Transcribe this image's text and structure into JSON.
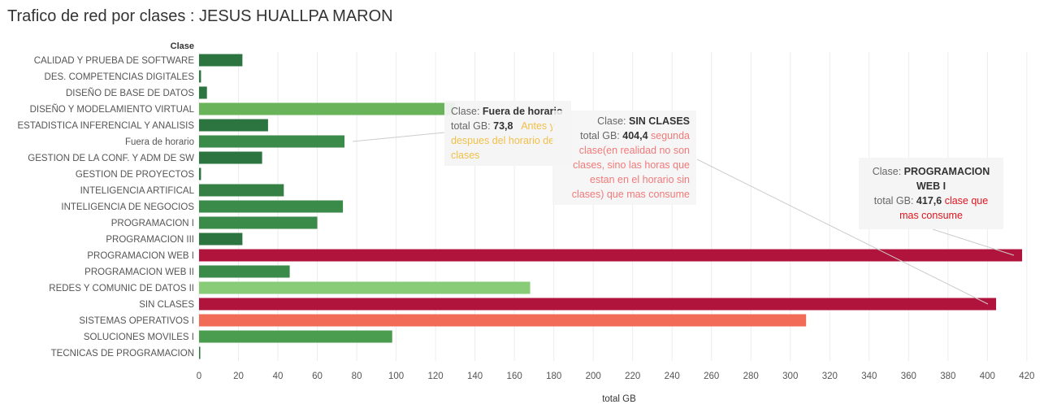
{
  "title": "Trafico de red por clases : JESUS HUALLPA MARON",
  "chart_data": {
    "type": "bar",
    "orientation": "horizontal",
    "title": "Trafico de red por clases : JESUS HUALLPA MARON",
    "ylabel": "Clase",
    "xlabel": "total GB",
    "xlim": [
      0,
      425
    ],
    "x_ticks": [
      0,
      20,
      40,
      60,
      80,
      100,
      120,
      140,
      160,
      180,
      200,
      220,
      240,
      260,
      280,
      300,
      320,
      340,
      360,
      380,
      400,
      420
    ],
    "grid": true,
    "categories": [
      "CALIDAD Y PRUEBA DE SOFTWARE",
      "DES. COMPETENCIAS DIGITALES",
      "DISEÑO DE BASE DE DATOS",
      "DISEÑO Y MODELAMIENTO VIRTUAL",
      "ESTADISTICA INFERENCIAL Y ANALISIS",
      "Fuera de horario",
      "GESTION DE LA CONF. Y ADM DE SW",
      "GESTION DE PROYECTOS",
      "INTELIGENCIA ARTIFICAL",
      "INTELIGENCIA DE NEGOCIOS",
      "PROGRAMACION I",
      "PROGRAMACION III",
      "PROGRAMACION WEB I",
      "PROGRAMACION WEB II",
      "REDES Y COMUNIC DE DATOS II",
      "SIN CLASES",
      "SISTEMAS OPERATIVOS I",
      "SOLUCIONES MOVILES I",
      "TECNICAS DE PROGRAMACION"
    ],
    "values": [
      22,
      1,
      4,
      130,
      35,
      73.8,
      32,
      1,
      43,
      73,
      60,
      22,
      417.6,
      46,
      168,
      404.4,
      308,
      98,
      0.5
    ],
    "colors": [
      "#2c7440",
      "#2c7440",
      "#2c7440",
      "#69b45a",
      "#2c7440",
      "#3a8a4a",
      "#2c7440",
      "#2c7440",
      "#368046",
      "#3a8a4a",
      "#3a8a4a",
      "#2c7440",
      "#b0133b",
      "#3a8a4a",
      "#88cc78",
      "#b0133b",
      "#f26b56",
      "#4a9c4e",
      "#2c7440"
    ]
  },
  "annotations": [
    {
      "label_prefix": "Clase:",
      "name": "Fuera de horario",
      "total_prefix": "total GB:",
      "total_value": "73,8",
      "note": "Antes y despues del horario de clases",
      "note_color": "#f0c04a",
      "line_color": "#cccccc"
    },
    {
      "label_prefix": "Clase:",
      "name": "SIN CLASES",
      "total_prefix": "total GB:",
      "total_value": "404,4",
      "note": "segunda clase(en realidad no son clases, sino las horas que estan en el horario sin clases) que mas consume",
      "note_color": "#f07a7a",
      "line_color": "#cccccc"
    },
    {
      "label_prefix": "Clase:",
      "name": "PROGRAMACION WEB I",
      "total_prefix": "total GB:",
      "total_value": "417,6",
      "note": "clase que mas consume",
      "note_color": "#e0141e",
      "line_color": "#cccccc"
    }
  ]
}
